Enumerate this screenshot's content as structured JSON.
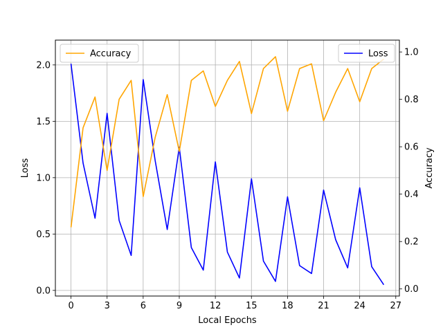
{
  "chart_data": {
    "type": "line",
    "xlabel": "Local Epochs",
    "ylabel_left": "Loss",
    "ylabel_right": "Accuracy",
    "x": [
      0,
      1,
      2,
      3,
      4,
      5,
      6,
      7,
      8,
      9,
      10,
      11,
      12,
      13,
      14,
      15,
      16,
      17,
      18,
      19,
      20,
      21,
      22,
      23,
      24,
      25,
      26
    ],
    "xlim": [
      -1.3,
      27.3
    ],
    "xticks": [
      0,
      3,
      6,
      9,
      12,
      15,
      18,
      21,
      24,
      27
    ],
    "ylim_left": [
      -0.05,
      2.22
    ],
    "yticks_left": [
      "0.0",
      "0.5",
      "1.0",
      "1.5",
      "2.0"
    ],
    "ylim_right": [
      -0.03,
      1.05
    ],
    "yticks_right": [
      "0.0",
      "0.2",
      "0.4",
      "0.6",
      "0.8",
      "1.0"
    ],
    "grid": true,
    "series": [
      {
        "name": "Loss",
        "axis": "left",
        "color": "#0000ff",
        "values": [
          2.01,
          1.13,
          0.64,
          1.57,
          0.62,
          0.31,
          1.87,
          1.15,
          0.54,
          1.27,
          0.38,
          0.18,
          1.14,
          0.34,
          0.11,
          0.99,
          0.26,
          0.08,
          0.83,
          0.22,
          0.15,
          0.89,
          0.45,
          0.2,
          0.91,
          0.21,
          0.05
        ]
      },
      {
        "name": "Accuracy",
        "axis": "right",
        "color": "#ffa500",
        "values": [
          0.26,
          0.68,
          0.81,
          0.5,
          0.8,
          0.88,
          0.39,
          0.64,
          0.82,
          0.58,
          0.88,
          0.92,
          0.77,
          0.88,
          0.96,
          0.74,
          0.93,
          0.98,
          0.75,
          0.93,
          0.95,
          0.71,
          0.83,
          0.93,
          0.79,
          0.93,
          0.97
        ]
      }
    ],
    "legends": [
      {
        "label": "Accuracy",
        "placement": "upper left"
      },
      {
        "label": "Loss",
        "placement": "upper right"
      }
    ]
  }
}
